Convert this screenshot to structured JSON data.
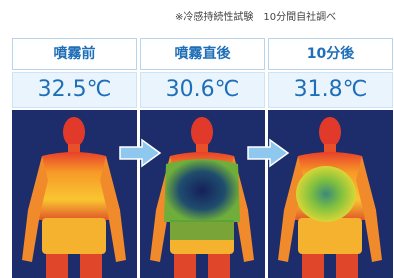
{
  "note": "※冷感持続性試験　10分間自社調べ",
  "columns": [
    {
      "header": "噴霧前",
      "temperature": "32.5℃"
    },
    {
      "header": "噴霧直後",
      "temperature": "30.6℃"
    },
    {
      "header": "10分後",
      "temperature": "31.8℃"
    }
  ]
}
